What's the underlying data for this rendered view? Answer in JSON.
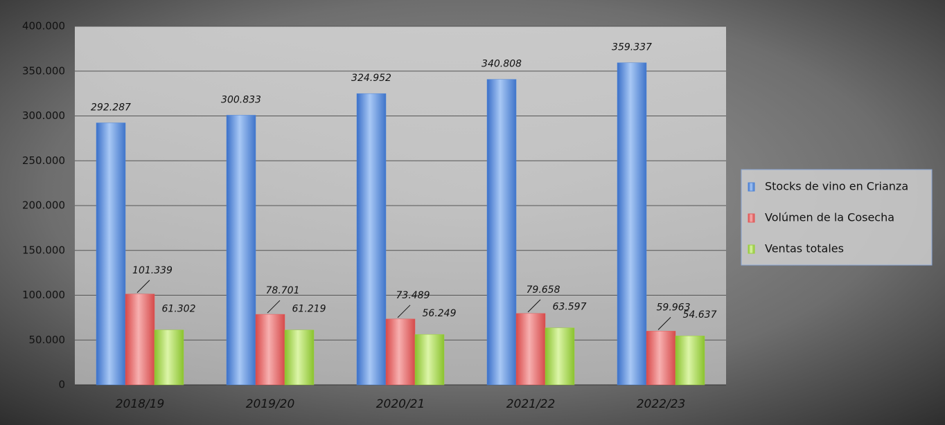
{
  "chart_data": {
    "type": "bar",
    "categories": [
      "2018/19",
      "2019/20",
      "2020/21",
      "2021/22",
      "2022/23"
    ],
    "series": [
      {
        "name": "Stocks de vino en Crianza",
        "color": "#4f86d8",
        "values": [
          292287,
          300833,
          324952,
          340808,
          359337
        ],
        "value_labels": [
          "292.287",
          "300.833",
          "324.952",
          "340.808",
          "359.337"
        ]
      },
      {
        "name": "Volúmen de la Cosecha",
        "color": "#e65a5a",
        "values": [
          101339,
          78701,
          73489,
          79658,
          59963
        ],
        "value_labels": [
          "101.339",
          "78.701",
          "73.489",
          "79.658",
          "59.963"
        ]
      },
      {
        "name": "Ventas totales",
        "color": "#9bd13c",
        "values": [
          61302,
          61219,
          56249,
          63597,
          54637
        ],
        "value_labels": [
          "61.302",
          "61.219",
          "56.249",
          "63.597",
          "54.637"
        ]
      }
    ],
    "ylim": [
      0,
      400000
    ],
    "yticks": [
      0,
      {
        "value": 50000,
        "label": "50.000"
      },
      {
        "value": 100000,
        "label": "100.000"
      },
      {
        "value": 150000,
        "label": "150.000"
      },
      {
        "value": 200000,
        "label": "200.000"
      },
      {
        "value": 250000,
        "label": "250.000"
      },
      {
        "value": 300000,
        "label": "300.000"
      },
      {
        "value": 350000,
        "label": "350.000"
      },
      {
        "value": 400000,
        "label": "400.000"
      }
    ],
    "grid": true,
    "legend": "right"
  }
}
